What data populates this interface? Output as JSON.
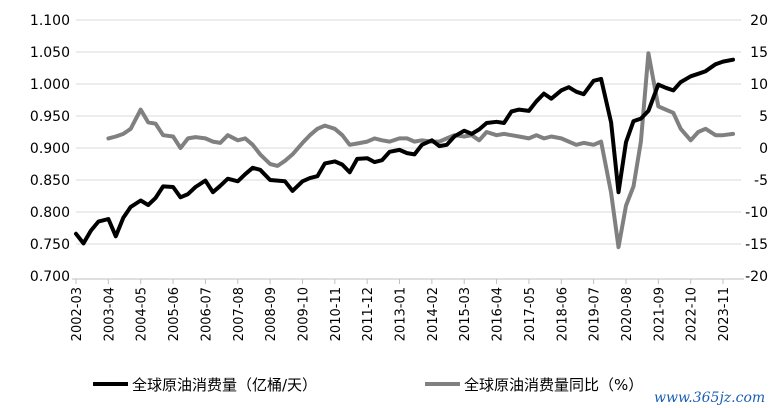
{
  "chart_data": {
    "type": "line",
    "title": "",
    "xlabel": "",
    "ylabel": "",
    "grid": true,
    "legend_placement": "bottom",
    "x_ticks": [
      "2002-03",
      "2003-04",
      "2004-05",
      "2005-06",
      "2006-07",
      "2007-08",
      "2008-09",
      "2009-10",
      "2010-11",
      "2011-12",
      "2013-01",
      "2014-02",
      "2015-03",
      "2016-04",
      "2017-05",
      "2018-06",
      "2019-07",
      "2020-08",
      "2021-09",
      "2022-10",
      "2023-11"
    ],
    "y_left": {
      "ticks": [
        "0.700",
        "0.750",
        "0.800",
        "0.850",
        "0.900",
        "0.950",
        "1.000",
        "1.050",
        "1.100"
      ],
      "min": 0.7,
      "max": 1.1
    },
    "y_right": {
      "ticks": [
        "-20",
        "-15",
        "-10",
        "-5",
        "0",
        "5",
        "10",
        "15",
        "20"
      ],
      "min": -20,
      "max": 20
    },
    "series": [
      {
        "name": "全球原油消费量（亿桶/天）",
        "axis": "left",
        "color": "#000000",
        "points": [
          [
            "2002-03",
            0.766
          ],
          [
            "2002-06",
            0.751
          ],
          [
            "2002-09",
            0.771
          ],
          [
            "2002-12",
            0.785
          ],
          [
            "2003-04",
            0.789
          ],
          [
            "2003-07",
            0.762
          ],
          [
            "2003-10",
            0.791
          ],
          [
            "2004-01",
            0.808
          ],
          [
            "2004-05",
            0.818
          ],
          [
            "2004-08",
            0.811
          ],
          [
            "2004-11",
            0.822
          ],
          [
            "2005-02",
            0.84
          ],
          [
            "2005-06",
            0.839
          ],
          [
            "2005-09",
            0.823
          ],
          [
            "2005-12",
            0.828
          ],
          [
            "2006-03",
            0.839
          ],
          [
            "2006-07",
            0.849
          ],
          [
            "2006-10",
            0.831
          ],
          [
            "2007-01",
            0.841
          ],
          [
            "2007-04",
            0.852
          ],
          [
            "2007-08",
            0.848
          ],
          [
            "2007-11",
            0.859
          ],
          [
            "2008-02",
            0.869
          ],
          [
            "2008-05",
            0.866
          ],
          [
            "2008-09",
            0.85
          ],
          [
            "2008-12",
            0.849
          ],
          [
            "2009-03",
            0.848
          ],
          [
            "2009-06",
            0.833
          ],
          [
            "2009-10",
            0.848
          ],
          [
            "2010-01",
            0.853
          ],
          [
            "2010-04",
            0.856
          ],
          [
            "2010-07",
            0.876
          ],
          [
            "2010-11",
            0.879
          ],
          [
            "2011-02",
            0.874
          ],
          [
            "2011-05",
            0.862
          ],
          [
            "2011-08",
            0.883
          ],
          [
            "2011-12",
            0.884
          ],
          [
            "2012-03",
            0.878
          ],
          [
            "2012-06",
            0.881
          ],
          [
            "2012-09",
            0.894
          ],
          [
            "2013-01",
            0.897
          ],
          [
            "2013-04",
            0.892
          ],
          [
            "2013-07",
            0.89
          ],
          [
            "2013-10",
            0.905
          ],
          [
            "2014-02",
            0.912
          ],
          [
            "2014-05",
            0.903
          ],
          [
            "2014-08",
            0.905
          ],
          [
            "2014-11",
            0.918
          ],
          [
            "2015-03",
            0.927
          ],
          [
            "2015-06",
            0.922
          ],
          [
            "2015-09",
            0.929
          ],
          [
            "2015-12",
            0.939
          ],
          [
            "2016-04",
            0.941
          ],
          [
            "2016-07",
            0.939
          ],
          [
            "2016-10",
            0.957
          ],
          [
            "2017-01",
            0.96
          ],
          [
            "2017-05",
            0.958
          ],
          [
            "2017-08",
            0.973
          ],
          [
            "2017-11",
            0.985
          ],
          [
            "2018-02",
            0.977
          ],
          [
            "2018-06",
            0.99
          ],
          [
            "2018-09",
            0.995
          ],
          [
            "2018-12",
            0.988
          ],
          [
            "2019-03",
            0.984
          ],
          [
            "2019-07",
            1.005
          ],
          [
            "2019-10",
            1.008
          ],
          [
            "2020-02",
            0.94
          ],
          [
            "2020-05",
            0.831
          ],
          [
            "2020-08",
            0.909
          ],
          [
            "2020-11",
            0.942
          ],
          [
            "2021-02",
            0.946
          ],
          [
            "2021-05",
            0.958
          ],
          [
            "2021-09",
            0.999
          ],
          [
            "2021-12",
            0.994
          ],
          [
            "2022-03",
            0.99
          ],
          [
            "2022-06",
            1.003
          ],
          [
            "2022-10",
            1.012
          ],
          [
            "2023-01",
            1.016
          ],
          [
            "2023-04",
            1.02
          ],
          [
            "2023-08",
            1.031
          ],
          [
            "2023-11",
            1.035
          ],
          [
            "2024-03",
            1.038
          ]
        ]
      },
      {
        "name": "全球原油消费量同比（%）",
        "axis": "right",
        "color": "#808080",
        "points": [
          [
            "2003-04",
            1.5
          ],
          [
            "2003-07",
            1.8
          ],
          [
            "2003-10",
            2.2
          ],
          [
            "2004-01",
            3.0
          ],
          [
            "2004-05",
            6.0
          ],
          [
            "2004-08",
            4.0
          ],
          [
            "2004-11",
            3.8
          ],
          [
            "2005-02",
            2.0
          ],
          [
            "2005-06",
            1.8
          ],
          [
            "2005-09",
            0.0
          ],
          [
            "2005-12",
            1.5
          ],
          [
            "2006-03",
            1.7
          ],
          [
            "2006-07",
            1.5
          ],
          [
            "2006-10",
            1.0
          ],
          [
            "2007-01",
            0.8
          ],
          [
            "2007-04",
            2.0
          ],
          [
            "2007-08",
            1.2
          ],
          [
            "2007-11",
            1.5
          ],
          [
            "2008-02",
            0.5
          ],
          [
            "2008-05",
            -1.0
          ],
          [
            "2008-09",
            -2.5
          ],
          [
            "2008-12",
            -2.8
          ],
          [
            "2009-03",
            -2.0
          ],
          [
            "2009-06",
            -1.0
          ],
          [
            "2009-10",
            0.8
          ],
          [
            "2010-01",
            2.0
          ],
          [
            "2010-04",
            3.0
          ],
          [
            "2010-07",
            3.5
          ],
          [
            "2010-11",
            3.0
          ],
          [
            "2011-02",
            2.0
          ],
          [
            "2011-05",
            0.5
          ],
          [
            "2011-08",
            0.7
          ],
          [
            "2011-12",
            1.0
          ],
          [
            "2012-03",
            1.5
          ],
          [
            "2012-06",
            1.2
          ],
          [
            "2012-09",
            1.0
          ],
          [
            "2013-01",
            1.5
          ],
          [
            "2013-04",
            1.5
          ],
          [
            "2013-07",
            1.0
          ],
          [
            "2013-10",
            1.2
          ],
          [
            "2014-02",
            1.0
          ],
          [
            "2014-05",
            1.0
          ],
          [
            "2014-08",
            1.5
          ],
          [
            "2014-11",
            2.0
          ],
          [
            "2015-03",
            1.8
          ],
          [
            "2015-06",
            2.0
          ],
          [
            "2015-09",
            1.2
          ],
          [
            "2015-12",
            2.5
          ],
          [
            "2016-04",
            2.0
          ],
          [
            "2016-07",
            2.2
          ],
          [
            "2016-10",
            2.0
          ],
          [
            "2017-01",
            1.8
          ],
          [
            "2017-05",
            1.5
          ],
          [
            "2017-08",
            2.0
          ],
          [
            "2017-11",
            1.5
          ],
          [
            "2018-02",
            1.8
          ],
          [
            "2018-06",
            1.5
          ],
          [
            "2018-09",
            1.0
          ],
          [
            "2018-12",
            0.5
          ],
          [
            "2019-03",
            0.8
          ],
          [
            "2019-07",
            0.5
          ],
          [
            "2019-10",
            1.0
          ],
          [
            "2020-02",
            -7.0
          ],
          [
            "2020-05",
            -15.5
          ],
          [
            "2020-08",
            -9.0
          ],
          [
            "2020-11",
            -6.0
          ],
          [
            "2021-02",
            1.0
          ],
          [
            "2021-05",
            14.8
          ],
          [
            "2021-09",
            6.5
          ],
          [
            "2021-12",
            6.0
          ],
          [
            "2022-03",
            5.5
          ],
          [
            "2022-06",
            3.0
          ],
          [
            "2022-10",
            1.2
          ],
          [
            "2023-01",
            2.5
          ],
          [
            "2023-04",
            3.0
          ],
          [
            "2023-08",
            2.0
          ],
          [
            "2023-11",
            2.0
          ],
          [
            "2024-03",
            2.2
          ]
        ]
      }
    ]
  },
  "watermark": "www.365jz.com"
}
